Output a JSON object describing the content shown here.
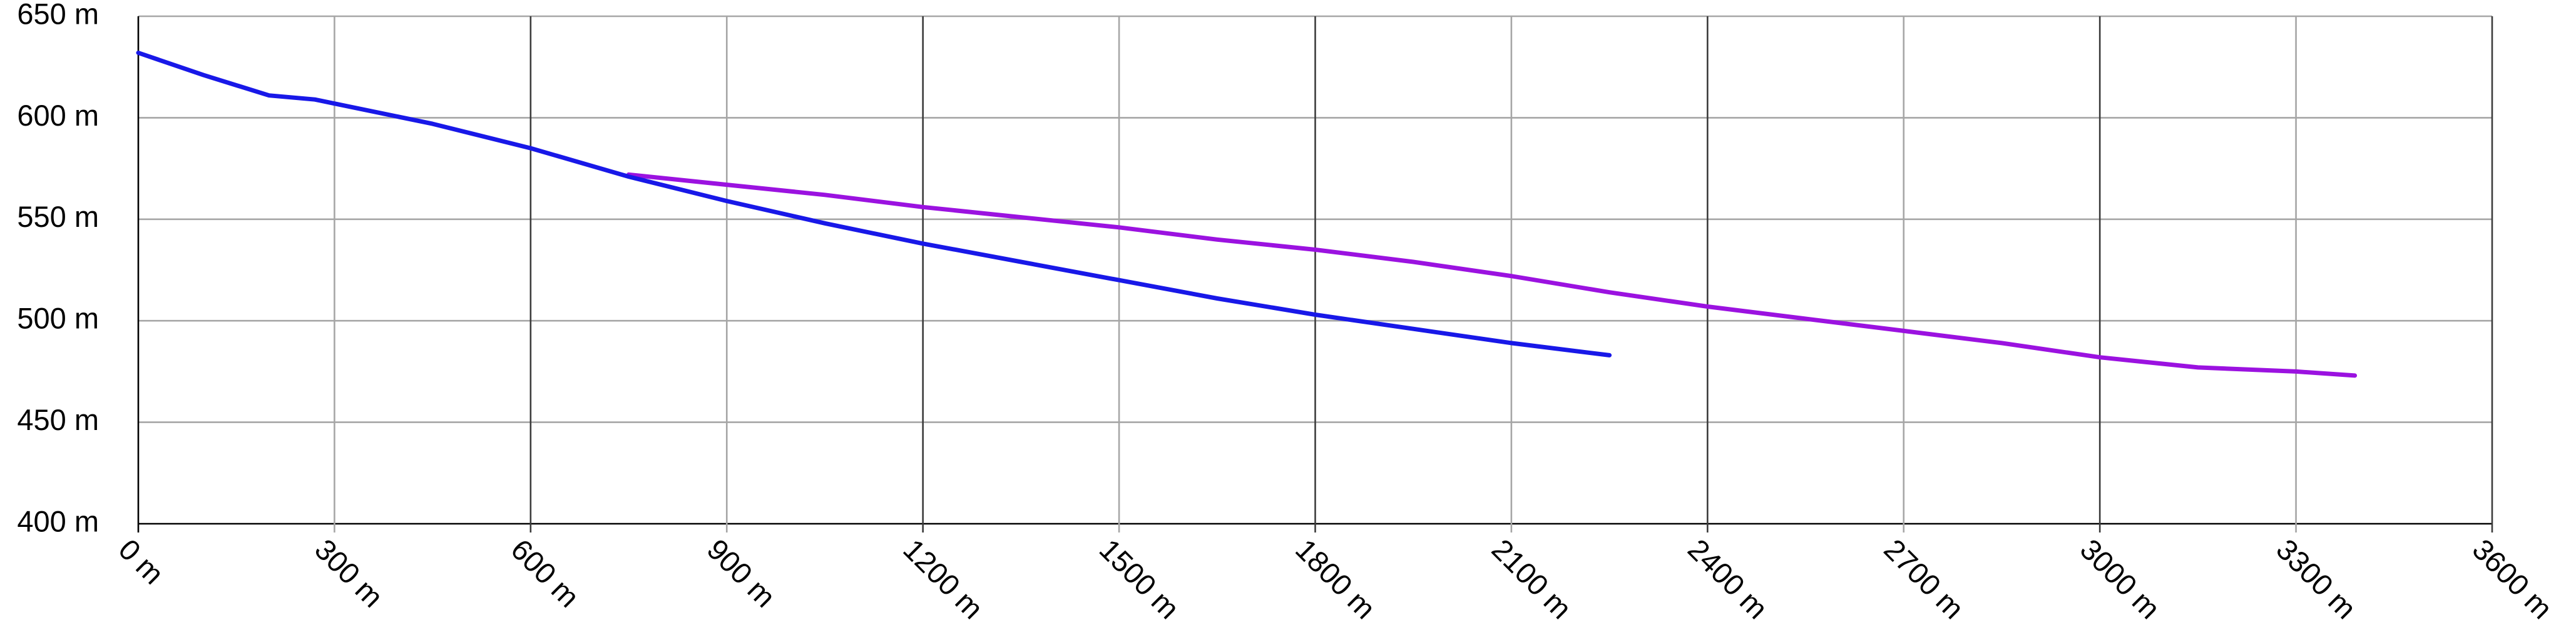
{
  "chart_data": {
    "type": "line",
    "title": "",
    "xlabel": "",
    "ylabel": "",
    "x_unit": "m",
    "y_unit": "m",
    "xlim": [
      0,
      3600
    ],
    "ylim": [
      400,
      650
    ],
    "x_ticks": [
      "0 m",
      "300 m",
      "600 m",
      "900 m",
      "1200 m",
      "1500 m",
      "1800 m",
      "2100 m",
      "2400 m",
      "2700 m",
      "3000 m",
      "3300 m",
      "3600 m"
    ],
    "y_ticks": [
      "400 m",
      "450 m",
      "500 m",
      "550 m",
      "600 m",
      "650 m"
    ],
    "grid": true,
    "legend": "none",
    "series": [
      {
        "color": "#9b12e0",
        "x": [
          750,
          900,
          1050,
          1200,
          1350,
          1500,
          1650,
          1800,
          1950,
          2100,
          2250,
          2400,
          2550,
          2700,
          2850,
          3000,
          3150,
          3300,
          3390
        ],
        "y": [
          572,
          567,
          562,
          556,
          551,
          546,
          540,
          535,
          529,
          522,
          514,
          507,
          501,
          495,
          489,
          482,
          477,
          475,
          473
        ]
      },
      {
        "color": "#1818e8",
        "x": [
          0,
          100,
          200,
          270,
          300,
          450,
          600,
          750,
          900,
          1050,
          1200,
          1350,
          1500,
          1650,
          1800,
          1950,
          2100,
          2250
        ],
        "y": [
          632,
          621,
          611,
          609,
          607,
          597,
          585,
          571,
          559,
          548,
          538,
          529,
          520,
          511,
          503,
          496,
          489,
          483
        ]
      }
    ]
  }
}
